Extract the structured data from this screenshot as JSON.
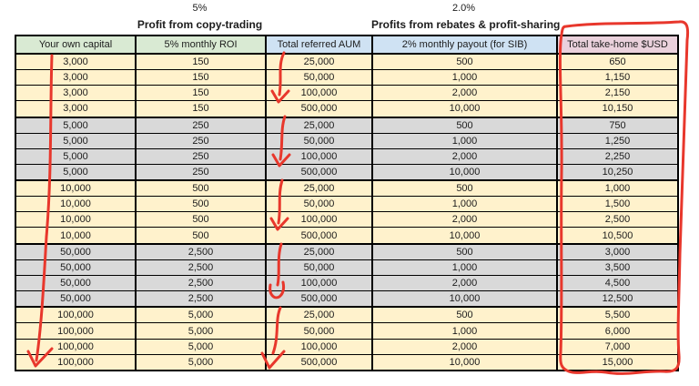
{
  "sections": [
    {
      "percent_label": "5%",
      "title": "Profit from copy-trading"
    },
    {
      "percent_label": "2.0%",
      "title": "Profits from rebates & profit-sharing"
    }
  ],
  "table": {
    "columns": [
      {
        "label": "Your own capital",
        "header_bg": "#d9ead3"
      },
      {
        "label": "5% monthly ROI",
        "header_bg": "#d9ead3"
      },
      {
        "label": "Total referred AUM",
        "header_bg": "#cfe2f3"
      },
      {
        "label": "2% monthly payout (for SIB)",
        "header_bg": "#cfe2f3"
      },
      {
        "label": "Total take-home $USD",
        "header_bg": "#ead1dc"
      }
    ],
    "row_colors": {
      "odd_group": "#fff2cc",
      "even_group": "#d9d9d9"
    },
    "rows": [
      [
        "3,000",
        "150",
        "25,000",
        "500",
        "650"
      ],
      [
        "3,000",
        "150",
        "50,000",
        "1,000",
        "1,150"
      ],
      [
        "3,000",
        "150",
        "100,000",
        "2,000",
        "2,150"
      ],
      [
        "3,000",
        "150",
        "500,000",
        "10,000",
        "10,150"
      ],
      [
        "5,000",
        "250",
        "25,000",
        "500",
        "750"
      ],
      [
        "5,000",
        "250",
        "50,000",
        "1,000",
        "1,250"
      ],
      [
        "5,000",
        "250",
        "100,000",
        "2,000",
        "2,250"
      ],
      [
        "5,000",
        "250",
        "500,000",
        "10,000",
        "10,250"
      ],
      [
        "10,000",
        "500",
        "25,000",
        "500",
        "1,000"
      ],
      [
        "10,000",
        "500",
        "50,000",
        "1,000",
        "1,500"
      ],
      [
        "10,000",
        "500",
        "100,000",
        "2,000",
        "2,500"
      ],
      [
        "10,000",
        "500",
        "500,000",
        "10,000",
        "10,500"
      ],
      [
        "50,000",
        "2,500",
        "25,000",
        "500",
        "3,000"
      ],
      [
        "50,000",
        "2,500",
        "50,000",
        "1,000",
        "3,500"
      ],
      [
        "50,000",
        "2,500",
        "100,000",
        "2,000",
        "4,500"
      ],
      [
        "50,000",
        "2,500",
        "500,000",
        "10,000",
        "12,500"
      ],
      [
        "100,000",
        "5,000",
        "25,000",
        "500",
        "5,500"
      ],
      [
        "100,000",
        "5,000",
        "50,000",
        "1,000",
        "6,000"
      ],
      [
        "100,000",
        "5,000",
        "100,000",
        "2,000",
        "7,000"
      ],
      [
        "100,000",
        "5,000",
        "500,000",
        "10,000",
        "15,000"
      ]
    ]
  },
  "annotations": {
    "pen_color": "#e8372c"
  },
  "chart_data": {
    "type": "table",
    "title": "",
    "columns": [
      "Your own capital",
      "5% monthly ROI",
      "Total referred AUM",
      "2% monthly payout (for SIB)",
      "Total take-home $USD"
    ],
    "rows": [
      [
        3000,
        150,
        25000,
        500,
        650
      ],
      [
        3000,
        150,
        50000,
        1000,
        1150
      ],
      [
        3000,
        150,
        100000,
        2000,
        2150
      ],
      [
        3000,
        150,
        500000,
        10000,
        10150
      ],
      [
        5000,
        250,
        25000,
        500,
        750
      ],
      [
        5000,
        250,
        50000,
        1000,
        1250
      ],
      [
        5000,
        250,
        100000,
        2000,
        2250
      ],
      [
        5000,
        250,
        500000,
        10000,
        10250
      ],
      [
        10000,
        500,
        25000,
        500,
        1000
      ],
      [
        10000,
        500,
        50000,
        1000,
        1500
      ],
      [
        10000,
        500,
        100000,
        2000,
        2500
      ],
      [
        10000,
        500,
        500000,
        10000,
        10500
      ],
      [
        50000,
        2500,
        25000,
        500,
        3000
      ],
      [
        50000,
        2500,
        50000,
        1000,
        3500
      ],
      [
        50000,
        2500,
        100000,
        2000,
        4500
      ],
      [
        50000,
        2500,
        500000,
        10000,
        12500
      ],
      [
        100000,
        5000,
        25000,
        500,
        5500
      ],
      [
        100000,
        5000,
        50000,
        1000,
        6000
      ],
      [
        100000,
        5000,
        100000,
        2000,
        7000
      ],
      [
        100000,
        5000,
        500000,
        10000,
        15000
      ]
    ],
    "section_headers": [
      {
        "rate": "5%",
        "label": "Profit from copy-trading",
        "applies_to_columns": [
          0,
          1
        ]
      },
      {
        "rate": "2.0%",
        "label": "Profits from rebates & profit-sharing",
        "applies_to_columns": [
          2,
          3
        ]
      }
    ],
    "annotations_meaning": "Red pen: vertical arrow down first column, repeated arrows down Total referred AUM groups, and a hand-drawn box circling the Total take-home $USD column"
  }
}
